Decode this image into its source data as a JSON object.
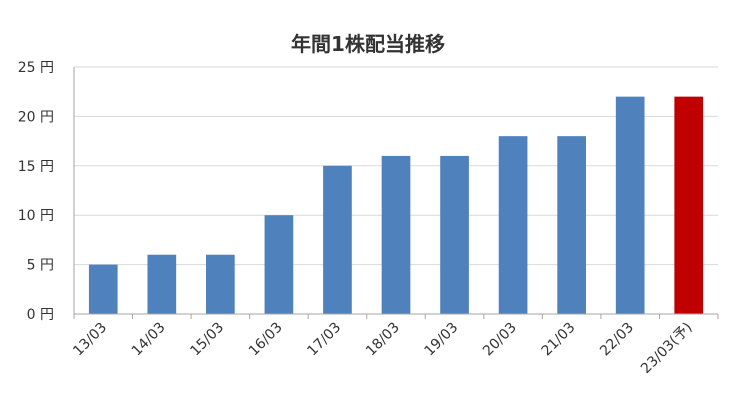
{
  "chart_data": {
    "type": "bar",
    "title": "年間1株配当推移",
    "xlabel": "",
    "ylabel": "",
    "categories": [
      "13/03",
      "14/03",
      "15/03",
      "16/03",
      "17/03",
      "18/03",
      "19/03",
      "20/03",
      "21/03",
      "22/03",
      "23/03(予)"
    ],
    "series": [
      {
        "values": [
          5,
          6,
          6,
          10,
          15,
          16,
          16,
          18,
          18,
          22,
          22
        ]
      }
    ],
    "ylim": [
      0,
      25
    ],
    "yticks": [
      0,
      5,
      10,
      15,
      20,
      25
    ],
    "ytick_labels": [
      "0 円",
      "5 円",
      "10 円",
      "15 円",
      "20 円",
      "25 円"
    ],
    "grid": true,
    "legend": "none",
    "colors": {
      "bar": "#4f81bd",
      "highlight": "#c00000",
      "grid": "#d9d9d9",
      "axis": "#a6a6a6",
      "text": "#333333"
    },
    "highlight_index": 10
  }
}
